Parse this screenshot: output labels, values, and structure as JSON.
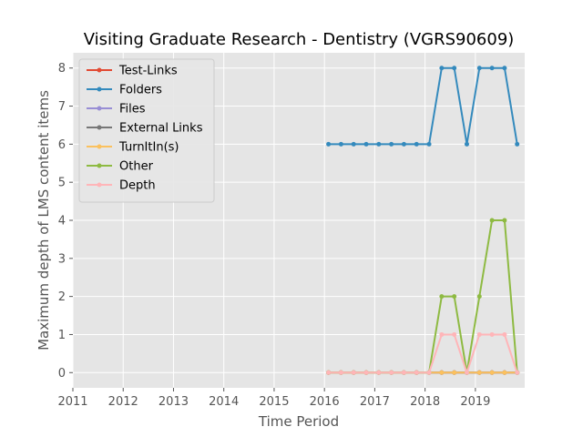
{
  "chart_data": {
    "type": "line",
    "title": "Visiting Graduate Research - Dentistry (VGRS90609)",
    "xlabel": "Time Period",
    "ylabel": "Maximum depth of LMS content items",
    "xlim": [
      2011.0,
      2019.98
    ],
    "ylim": [
      -0.4,
      8.4
    ],
    "x_ticks": [
      2011,
      2012,
      2013,
      2014,
      2015,
      2016,
      2017,
      2018,
      2019
    ],
    "x_tick_labels": [
      "2011",
      "2012",
      "2013",
      "2014",
      "2015",
      "2016",
      "2017",
      "2018",
      "2019"
    ],
    "y_ticks": [
      0,
      1,
      2,
      3,
      4,
      5,
      6,
      7,
      8
    ],
    "y_tick_labels": [
      "0",
      "1",
      "2",
      "3",
      "4",
      "5",
      "6",
      "7",
      "8"
    ],
    "grid": true,
    "legend_position": "top-left",
    "x": [
      2016.08,
      2016.33,
      2016.58,
      2016.83,
      2017.08,
      2017.33,
      2017.58,
      2017.83,
      2018.08,
      2018.33,
      2018.58,
      2018.83,
      2019.08,
      2019.33,
      2019.58,
      2019.83
    ],
    "series": [
      {
        "name": "Test-Links",
        "color": "#E24A33",
        "values": [
          0,
          0,
          0,
          0,
          0,
          0,
          0,
          0,
          0,
          0,
          0,
          0,
          0,
          0,
          0,
          0
        ]
      },
      {
        "name": "Folders",
        "color": "#348ABD",
        "values": [
          6,
          6,
          6,
          6,
          6,
          6,
          6,
          6,
          6,
          8,
          8,
          6,
          8,
          8,
          8,
          6
        ]
      },
      {
        "name": "Files",
        "color": "#988ED5",
        "values": [
          0,
          0,
          0,
          0,
          0,
          0,
          0,
          0,
          0,
          0,
          0,
          0,
          0,
          0,
          0,
          0
        ]
      },
      {
        "name": "External Links",
        "color": "#777777",
        "values": [
          0,
          0,
          0,
          0,
          0,
          0,
          0,
          0,
          0,
          0,
          0,
          0,
          0,
          0,
          0,
          0
        ]
      },
      {
        "name": "TurnItIn(s)",
        "color": "#FBC15E",
        "values": [
          0,
          0,
          0,
          0,
          0,
          0,
          0,
          0,
          0,
          0,
          0,
          0,
          0,
          0,
          0,
          0
        ]
      },
      {
        "name": "Other",
        "color": "#8EBA42",
        "values": [
          0,
          0,
          0,
          0,
          0,
          0,
          0,
          0,
          0,
          2,
          2,
          0,
          2,
          4,
          4,
          0
        ]
      },
      {
        "name": "Depth",
        "color": "#FFB5B8",
        "values": [
          0,
          0,
          0,
          0,
          0,
          0,
          0,
          0,
          0,
          1,
          1,
          0,
          1,
          1,
          1,
          0
        ]
      }
    ]
  }
}
